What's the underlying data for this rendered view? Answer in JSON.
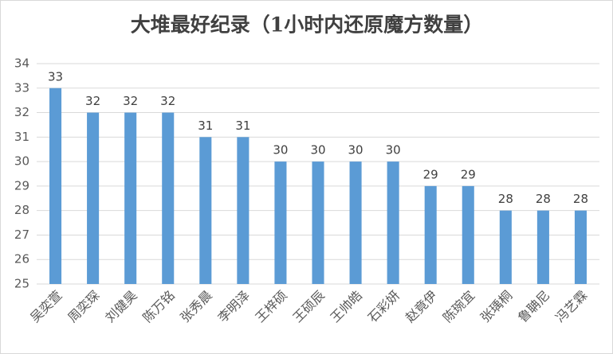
{
  "chart_data": {
    "type": "bar",
    "title": "大堆最好纪录（1小时内还原魔方数量）",
    "categories": [
      "吴奕萱",
      "周奕琛",
      "刘健昊",
      "陈万铭",
      "张秀晨",
      "李明泽",
      "王梓硕",
      "王硕辰",
      "王帅皓",
      "石彩妍",
      "赵竟伊",
      "陈琬宜",
      "张瑀桐",
      "鲁聃尼",
      "冯艺霖"
    ],
    "values": [
      33,
      32,
      32,
      32,
      31,
      31,
      30,
      30,
      30,
      30,
      29,
      29,
      28,
      28,
      28
    ],
    "color": "#5b9bd5",
    "ylim": [
      25,
      34
    ],
    "yticks": [
      25,
      26,
      27,
      28,
      29,
      30,
      31,
      32,
      33,
      34
    ],
    "grid": true
  }
}
